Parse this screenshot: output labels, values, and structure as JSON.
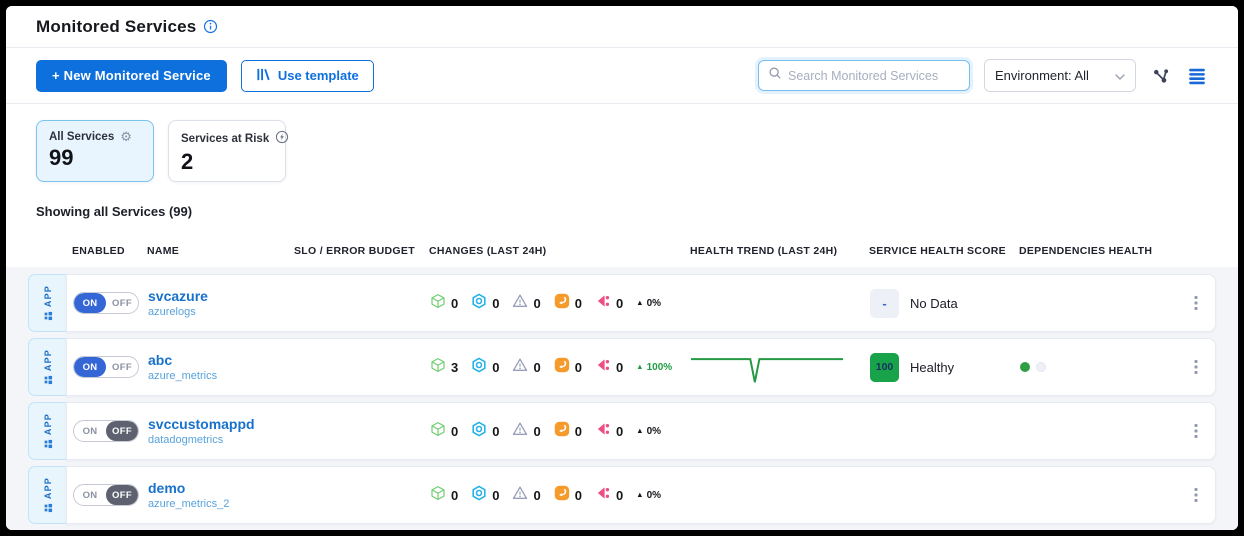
{
  "page": {
    "title": "Monitored Services"
  },
  "toolbar": {
    "new_button": "+ New Monitored Service",
    "template_button": "Use template",
    "search_placeholder": "Search Monitored Services",
    "environment_select": "Environment: All"
  },
  "summary": {
    "cards": [
      {
        "label": "All Services",
        "icon": "gear-icon",
        "value": "99"
      },
      {
        "label": "Services at Risk",
        "icon": "risk-lightning-icon",
        "value": "2"
      }
    ]
  },
  "showing_text": "Showing all Services (99)",
  "toggle": {
    "on": "ON",
    "off": "OFF"
  },
  "type_badge": "APP",
  "table": {
    "columns": [
      "ENABLED",
      "NAME",
      "SLO / ERROR BUDGET",
      "CHANGES (LAST 24H)",
      "HEALTH TREND (LAST 24H)",
      "SERVICE HEALTH SCORE",
      "DEPENDENCIES HEALTH"
    ],
    "change_icons": [
      "deployment-cube-icon",
      "integration-hexnut-icon",
      "alert-triangle-icon",
      "config-change-icon",
      "incident-icon"
    ],
    "rows": [
      {
        "name": "svcazure",
        "subtitle": "azurelogs",
        "enabled": "on",
        "changes": [
          "0",
          "0",
          "0",
          "0",
          "0"
        ],
        "delta": "0%",
        "score": "-",
        "score_label": "No Data"
      },
      {
        "name": "abc",
        "subtitle": "azure_metrics",
        "enabled": "on",
        "changes": [
          "3",
          "0",
          "0",
          "0",
          "0"
        ],
        "delta": "100%",
        "score": "100",
        "score_label": "Healthy",
        "trend_points": [
          [
            0,
            28
          ],
          [
            39,
            28
          ],
          [
            42,
            92
          ],
          [
            45,
            28
          ],
          [
            100,
            28
          ]
        ],
        "dependencies": [
          "healthy",
          "empty"
        ]
      },
      {
        "name": "svccustomappd",
        "subtitle": "datadogmetrics",
        "enabled": "off",
        "changes": [
          "0",
          "0",
          "0",
          "0",
          "0"
        ],
        "delta": "0%"
      },
      {
        "name": "demo",
        "subtitle": "azure_metrics_2",
        "enabled": "off",
        "changes": [
          "0",
          "0",
          "0",
          "0",
          "0"
        ],
        "delta": "0%"
      }
    ]
  },
  "colors": {
    "accent_blue": "#0e70dd",
    "toggle_on_blue": "#3566d6",
    "toggle_off_gray": "#5d6170",
    "healthy_green": "#18a34a",
    "sparkline_green": "#259a44",
    "delta_green": "#1f9d44",
    "link_blue": "#1872cc"
  }
}
